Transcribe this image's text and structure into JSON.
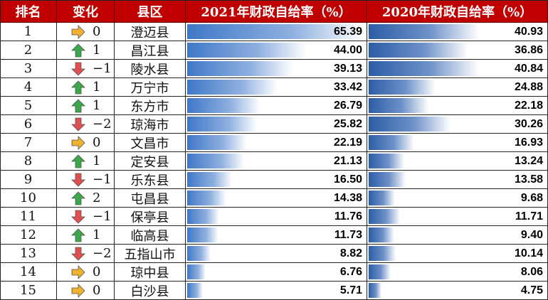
{
  "headers": {
    "rank": "排名",
    "change": "变化",
    "county": "县区",
    "rate2021": "2021年财政自给率（%）",
    "rate2020": "2020年财政自给率（%）"
  },
  "colors": {
    "header_bg": "#c00000",
    "up_arrow": "#3aa84a",
    "down_arrow": "#e05050",
    "flat_arrow": "#f0b030"
  },
  "chart_data": {
    "type": "table",
    "columns": [
      "排名",
      "变化",
      "县区",
      "2021年财政自给率（%）",
      "2020年财政自给率（%）"
    ],
    "xlim": [
      0,
      65.39
    ],
    "rows": [
      {
        "rank": "1",
        "dir": "flat",
        "change": "0",
        "county": "澄迈县",
        "v2021": "65.39",
        "v2020": "40.93"
      },
      {
        "rank": "2",
        "dir": "up",
        "change": "1",
        "county": "昌江县",
        "v2021": "44.00",
        "v2020": "36.86"
      },
      {
        "rank": "3",
        "dir": "down",
        "change": "−1",
        "county": "陵水县",
        "v2021": "39.13",
        "v2020": "40.84"
      },
      {
        "rank": "4",
        "dir": "up",
        "change": "1",
        "county": "万宁市",
        "v2021": "33.42",
        "v2020": "24.88"
      },
      {
        "rank": "5",
        "dir": "up",
        "change": "1",
        "county": "东方市",
        "v2021": "26.79",
        "v2020": "22.18"
      },
      {
        "rank": "6",
        "dir": "down",
        "change": "−2",
        "county": "琼海市",
        "v2021": "25.82",
        "v2020": "30.26"
      },
      {
        "rank": "7",
        "dir": "flat",
        "change": "0",
        "county": "文昌市",
        "v2021": "22.19",
        "v2020": "16.93"
      },
      {
        "rank": "8",
        "dir": "up",
        "change": "1",
        "county": "定安县",
        "v2021": "21.13",
        "v2020": "13.24"
      },
      {
        "rank": "9",
        "dir": "down",
        "change": "−1",
        "county": "乐东县",
        "v2021": "16.50",
        "v2020": "13.58"
      },
      {
        "rank": "10",
        "dir": "up",
        "change": "2",
        "county": "屯昌县",
        "v2021": "14.38",
        "v2020": "9.68"
      },
      {
        "rank": "11",
        "dir": "down",
        "change": "−1",
        "county": "保亭县",
        "v2021": "11.76",
        "v2020": "11.71"
      },
      {
        "rank": "12",
        "dir": "up",
        "change": "1",
        "county": "临高县",
        "v2021": "11.73",
        "v2020": "9.40"
      },
      {
        "rank": "13",
        "dir": "down",
        "change": "−2",
        "county": "五指山市",
        "v2021": "8.82",
        "v2020": "10.14"
      },
      {
        "rank": "14",
        "dir": "flat",
        "change": "0",
        "county": "琼中县",
        "v2021": "6.76",
        "v2020": "8.06"
      },
      {
        "rank": "15",
        "dir": "flat",
        "change": "0",
        "county": "白沙县",
        "v2021": "5.71",
        "v2020": "4.75"
      }
    ]
  }
}
